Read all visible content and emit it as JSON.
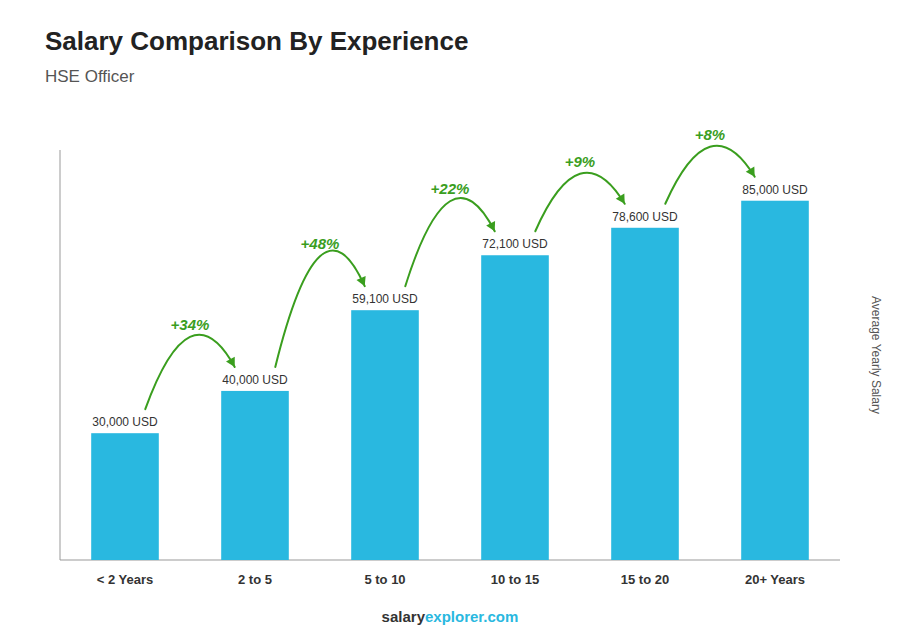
{
  "chart_data": {
    "type": "bar",
    "title": "Salary Comparison By Experience",
    "subtitle": "HSE Officer",
    "categories": [
      "< 2 Years",
      "2 to 5",
      "5 to 10",
      "10 to 15",
      "15 to 20",
      "20+ Years"
    ],
    "values": [
      30000,
      40000,
      59100,
      72100,
      78600,
      85000
    ],
    "value_labels": [
      "30,000 USD",
      "40,000 USD",
      "59,100 USD",
      "72,100 USD",
      "78,600 USD",
      "85,000 USD"
    ],
    "data_labels": true,
    "color": "#29B8E0",
    "ylim": [
      0,
      97000
    ],
    "ylabel": "Average Yearly Salary",
    "annotations": [
      "+34%",
      "+48%",
      "+22%",
      "+9%",
      "+8%"
    ],
    "footer": [
      "salary",
      "explorer.com"
    ],
    "tick_labels": "x",
    "grid": false
  }
}
